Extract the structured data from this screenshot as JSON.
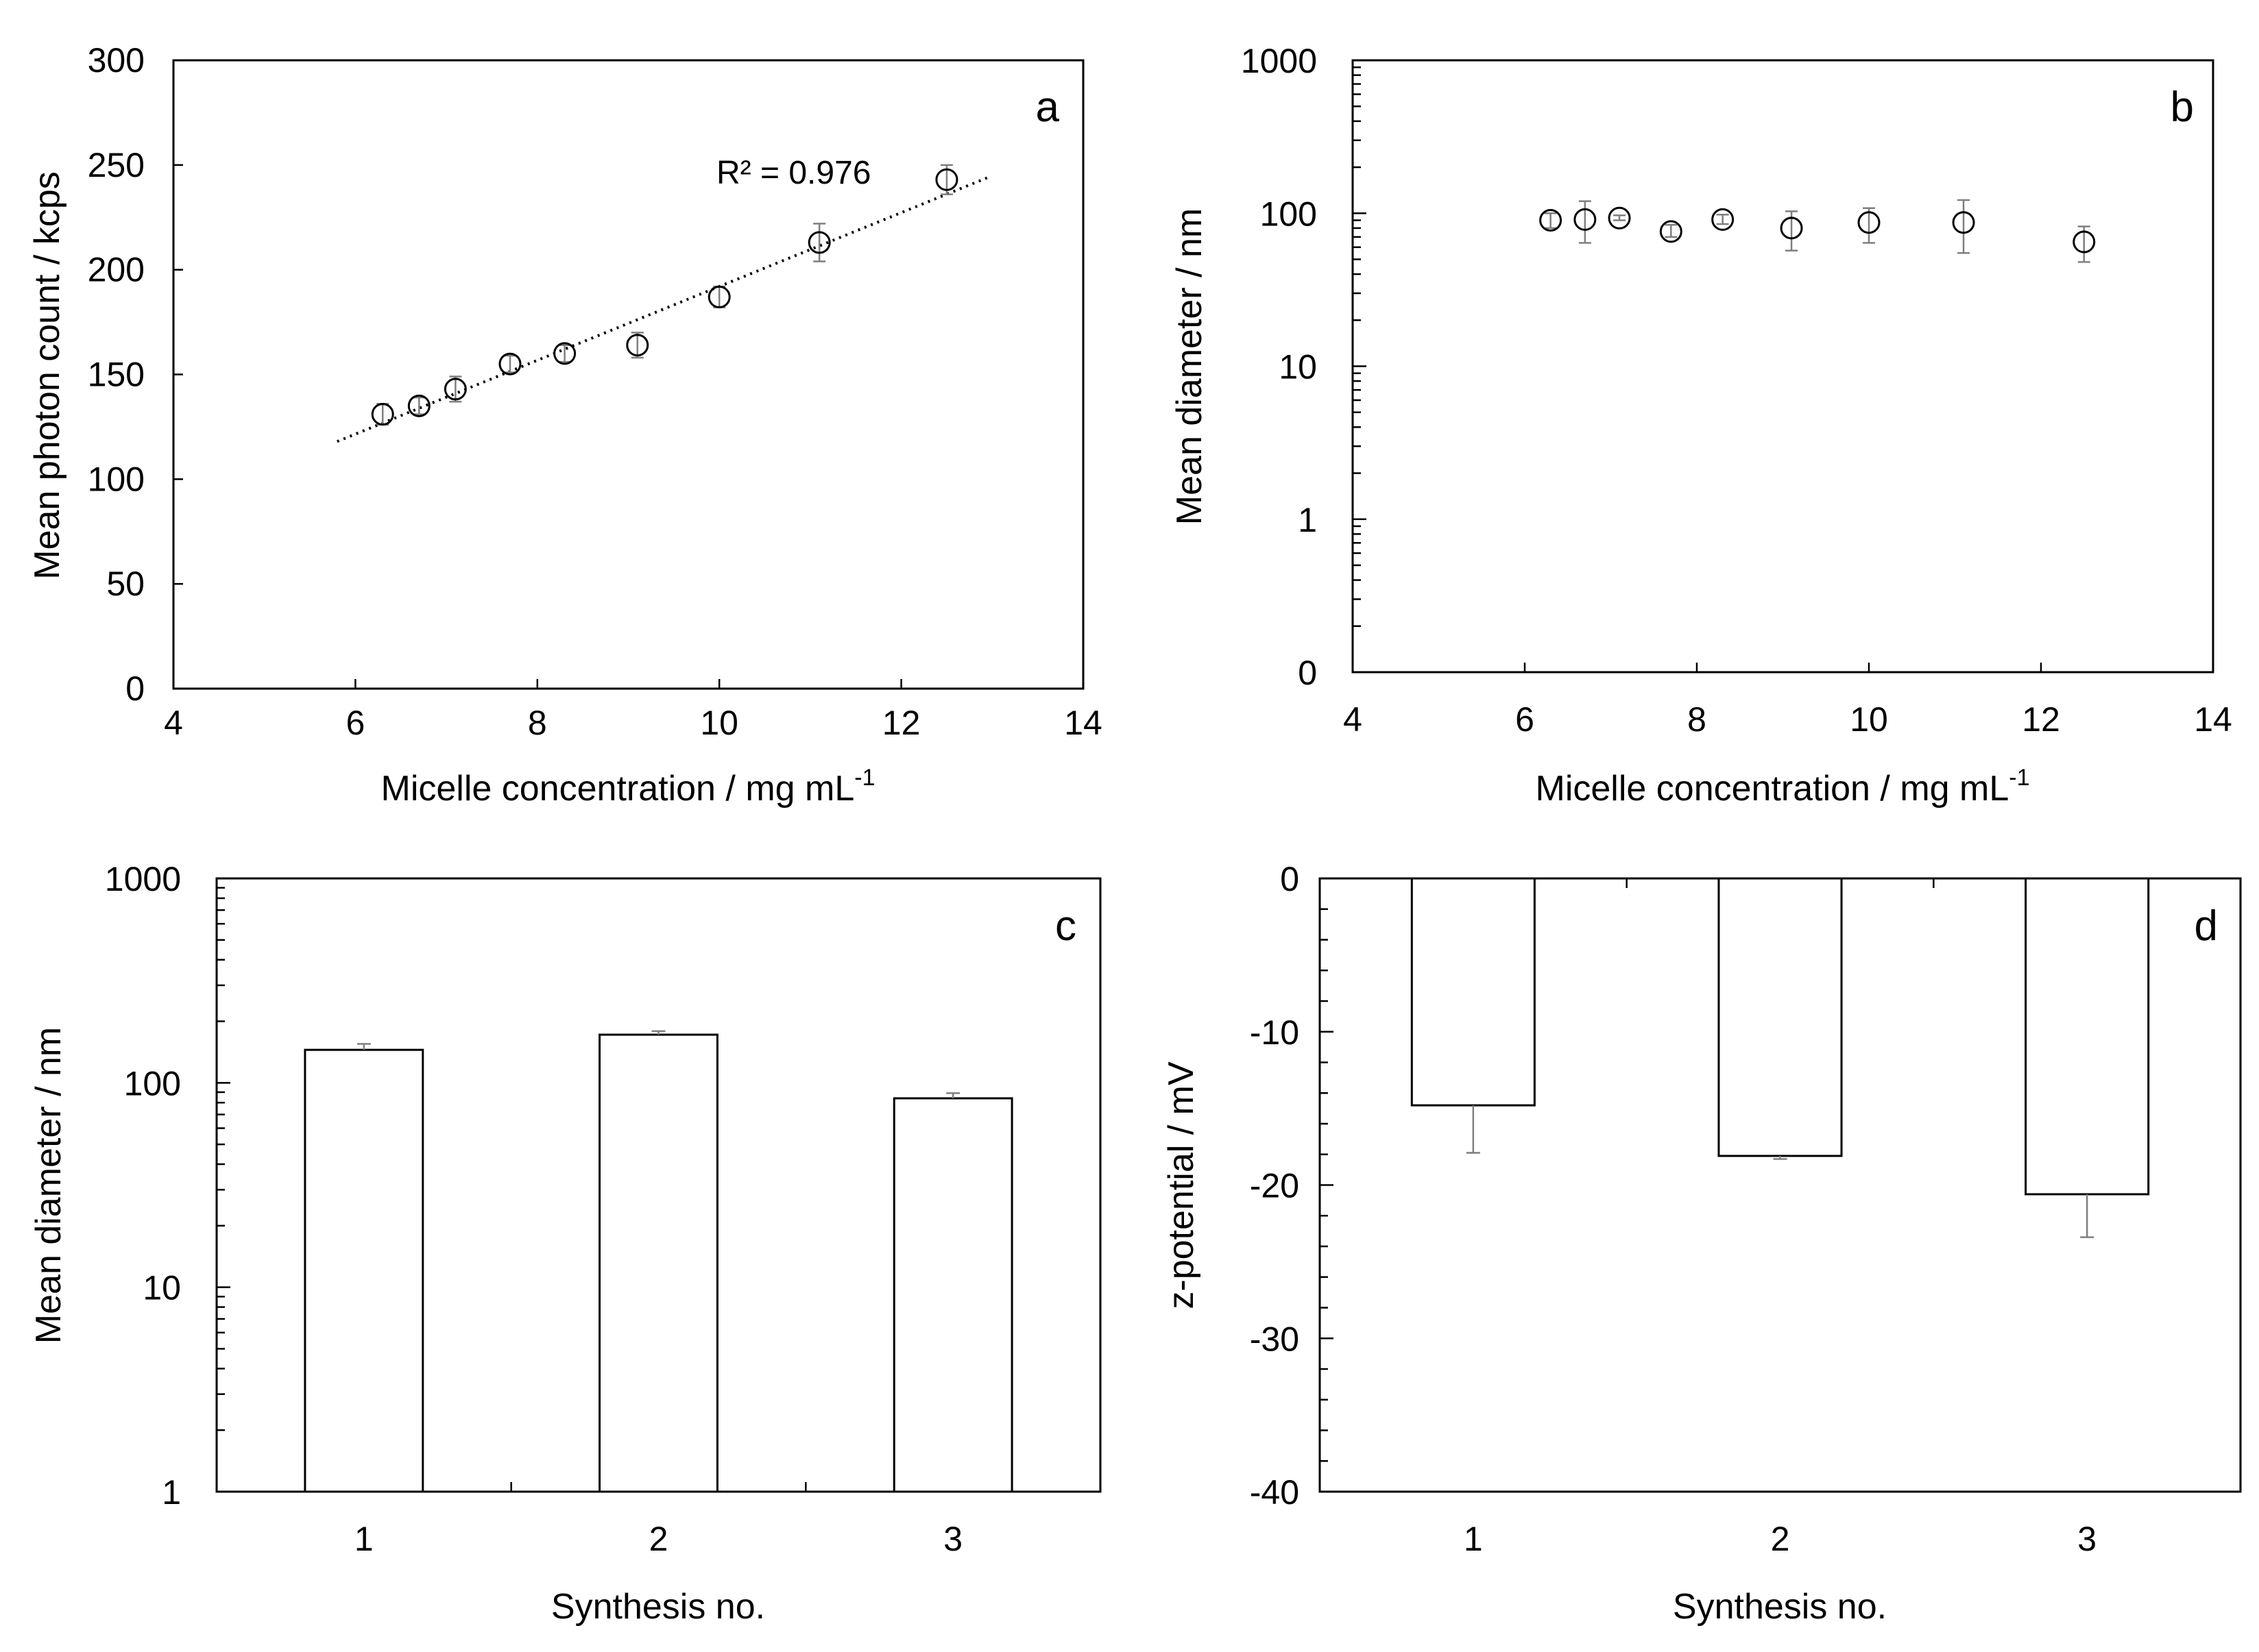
{
  "chart_data": [
    {
      "id": "a",
      "type": "scatter",
      "panel_letter": "a",
      "xlabel": "Micelle concentration / mg mL",
      "xlabel_superscript": "-1",
      "ylabel": "Mean photon count / kcps",
      "xlim": [
        4,
        14
      ],
      "ylim": [
        0,
        300
      ],
      "x_ticks": [
        4,
        6,
        8,
        10,
        12,
        14
      ],
      "y_ticks": [
        0,
        50,
        100,
        150,
        200,
        250,
        300
      ],
      "x": [
        6.3,
        6.7,
        7.1,
        7.7,
        8.3,
        9.1,
        10.0,
        11.1,
        12.5
      ],
      "y": [
        131,
        135,
        143,
        155,
        160,
        164,
        187,
        213,
        243
      ],
      "error": [
        5,
        4,
        6,
        4,
        4,
        6,
        5,
        9,
        7
      ],
      "trendline": {
        "x": [
          5.8,
          12.95
        ],
        "y": [
          118,
          244
        ]
      },
      "annotation": "R² = 0.976"
    },
    {
      "id": "b",
      "type": "scatter",
      "panel_letter": "b",
      "xlabel": "Micelle concentration / mg mL",
      "xlabel_superscript": "-1",
      "ylabel": "Mean diameter / nm",
      "yscale": "log",
      "xlim": [
        4,
        14
      ],
      "ylim": [
        0.1,
        1000
      ],
      "x_ticks": [
        4,
        6,
        8,
        10,
        12,
        14
      ],
      "y_ticks": [
        0.1,
        1,
        10,
        100,
        1000
      ],
      "y_tick_labels": [
        "0",
        "1",
        "10",
        "100",
        "1000"
      ],
      "x": [
        6.3,
        6.7,
        7.1,
        7.7,
        8.3,
        9.1,
        10.0,
        11.1,
        12.5
      ],
      "y": [
        90,
        91,
        93,
        76,
        91,
        80,
        87,
        87,
        65
      ],
      "y_err_low": [
        80,
        64,
        90,
        70,
        85,
        57,
        64,
        55,
        48
      ],
      "y_err_high": [
        100,
        120,
        97,
        84,
        98,
        103,
        108,
        122,
        82
      ]
    },
    {
      "id": "c",
      "type": "bar",
      "panel_letter": "c",
      "xlabel": "Synthesis no.",
      "ylabel": "Mean diameter / nm",
      "yscale": "log",
      "ylim": [
        1,
        1000
      ],
      "y_ticks": [
        1,
        10,
        100,
        1000
      ],
      "y_tick_labels": [
        "1",
        "10",
        "100",
        "1000"
      ],
      "categories": [
        "1",
        "2",
        "3"
      ],
      "values": [
        145,
        172,
        84
      ],
      "error": [
        10,
        7,
        5
      ]
    },
    {
      "id": "d",
      "type": "bar",
      "panel_letter": "d",
      "xlabel": "Synthesis no.",
      "ylabel": "z-potential / mV",
      "ylim": [
        -40,
        0
      ],
      "y_ticks": [
        0,
        -10,
        -20,
        -30,
        -40
      ],
      "y_tick_labels": [
        "0",
        "-10",
        "-20",
        "-30",
        "-40"
      ],
      "categories": [
        "1",
        "2",
        "3"
      ],
      "values": [
        -14.8,
        -18.1,
        -20.6
      ],
      "error": [
        3.1,
        0.2,
        2.8
      ]
    }
  ]
}
